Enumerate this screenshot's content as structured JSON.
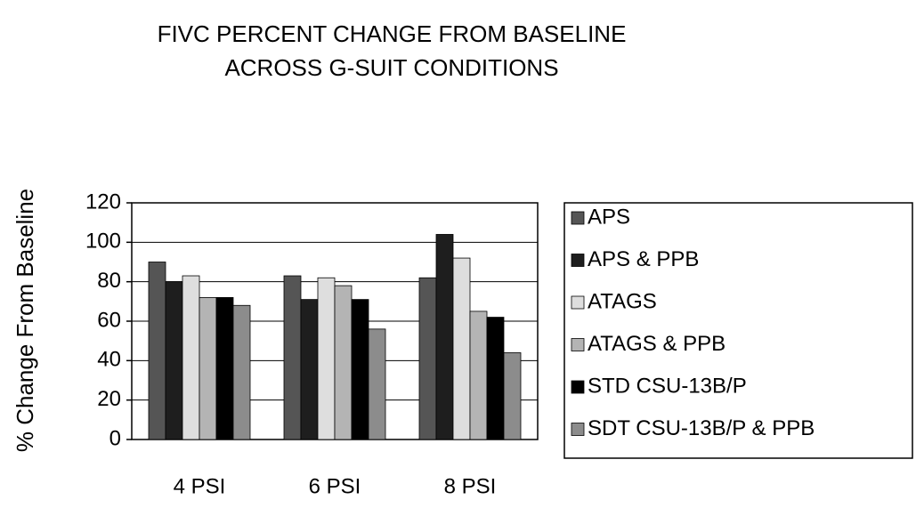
{
  "chart_data": {
    "type": "bar",
    "title": [
      "FIVC PERCENT CHANGE FROM BASELINE",
      "ACROSS G-SUIT CONDITIONS"
    ],
    "y_label": "% Change  From Baseline",
    "categories": [
      "4 PSI",
      "6 PSI",
      "8 PSI"
    ],
    "series": [
      {
        "name": "APS",
        "color": "#555555",
        "values": [
          90,
          83,
          82
        ]
      },
      {
        "name": "APS & PPB",
        "color": "#1e1e1e",
        "values": [
          80,
          71,
          104
        ]
      },
      {
        "name": "ATAGS",
        "color": "#dedede",
        "values": [
          83,
          82,
          92
        ]
      },
      {
        "name": "ATAGS & PPB",
        "color": "#b4b4b4",
        "values": [
          72,
          78,
          65
        ]
      },
      {
        "name": "STD CSU-13B/P",
        "color": "#000000",
        "values": [
          72,
          71,
          62
        ]
      },
      {
        "name": "SDT CSU-13B/P & PPB",
        "color": "#8c8c8c",
        "values": [
          68,
          56,
          44
        ]
      }
    ],
    "ylim": [
      0,
      120
    ],
    "yticks": [
      0,
      20,
      40,
      60,
      80,
      100,
      120
    ],
    "grid": true,
    "legend": "right"
  }
}
